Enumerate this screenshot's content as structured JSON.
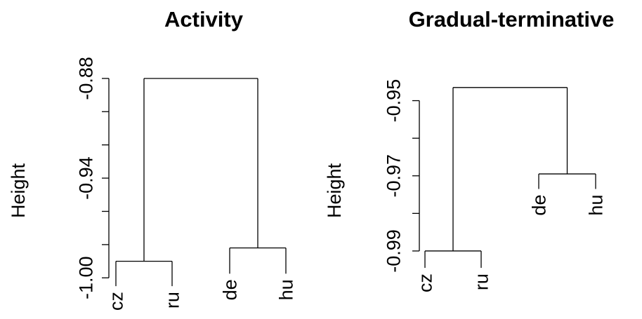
{
  "chart_data": [
    {
      "type": "dendrogram",
      "title": "Activity",
      "ylabel": "Height",
      "ylim": [
        -1.01,
        -0.875
      ],
      "yticks": [
        -1.0,
        -0.98,
        -0.96,
        -0.94,
        -0.92,
        -0.9,
        -0.88
      ],
      "ytick_labels": [
        "-1.00",
        "",
        "",
        "-0.94",
        "",
        "",
        "-0.88"
      ],
      "leaves": [
        "cz",
        "ru",
        "de",
        "hu"
      ],
      "leaf_heights": [
        -1.005,
        -1.005,
        -0.9975,
        -0.9975
      ],
      "merges": [
        {
          "left": "cz",
          "right": "ru",
          "height": -0.99
        },
        {
          "left": "de",
          "right": "hu",
          "height": -0.982
        },
        {
          "left": "cz+ru",
          "right": "de+hu",
          "height": -0.88
        }
      ]
    },
    {
      "type": "dendrogram",
      "title": "Gradual-terminative",
      "ylabel": "Height",
      "ylim": [
        -0.9915,
        -0.9415
      ],
      "yticks": [
        -0.99,
        -0.98,
        -0.97,
        -0.96,
        -0.95
      ],
      "ytick_labels": [
        "-0.99",
        "",
        "-0.97",
        "",
        "-0.95"
      ],
      "leaves": [
        "cz",
        "ru",
        "de",
        "hu"
      ],
      "leaf_heights": [
        -0.9945,
        -0.9945,
        -0.9735,
        -0.9735
      ],
      "merges": [
        {
          "left": "cz",
          "right": "ru",
          "height": -0.99
        },
        {
          "left": "de",
          "right": "hu",
          "height": -0.9695
        },
        {
          "left": "cz+ru",
          "right": "de+hu",
          "height": -0.9465
        }
      ]
    }
  ]
}
